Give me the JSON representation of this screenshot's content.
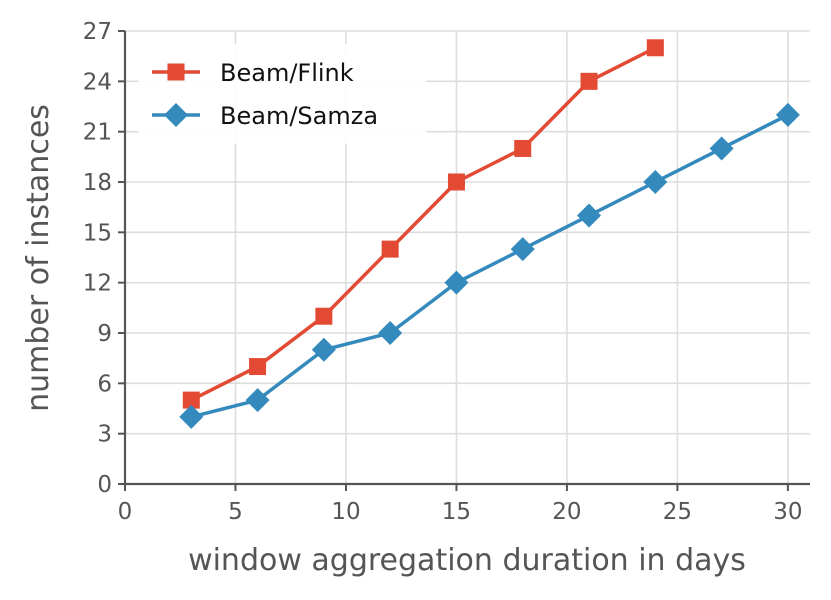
{
  "chart_data": {
    "type": "line",
    "title": "",
    "xlabel": "window aggregation duration in days",
    "ylabel": "number of instances",
    "xlim": [
      0,
      31
    ],
    "ylim": [
      0,
      27
    ],
    "xticks": [
      0,
      5,
      10,
      15,
      20,
      25,
      30
    ],
    "yticks": [
      0,
      3,
      6,
      9,
      12,
      15,
      18,
      21,
      24,
      27
    ],
    "grid": true,
    "legend_position": "top-left",
    "series": [
      {
        "name": "Beam/Flink",
        "color": "#e24a33",
        "marker": "square",
        "x": [
          3,
          6,
          9,
          12,
          15,
          18,
          21,
          24
        ],
        "y": [
          5,
          7,
          10,
          14,
          18,
          20,
          24,
          26
        ]
      },
      {
        "name": "Beam/Samza",
        "color": "#348abd",
        "marker": "diamond",
        "x": [
          3,
          6,
          9,
          12,
          15,
          18,
          21,
          24,
          27,
          30
        ],
        "y": [
          4,
          5,
          8,
          9,
          12,
          14,
          16,
          18,
          20,
          22
        ]
      }
    ]
  }
}
